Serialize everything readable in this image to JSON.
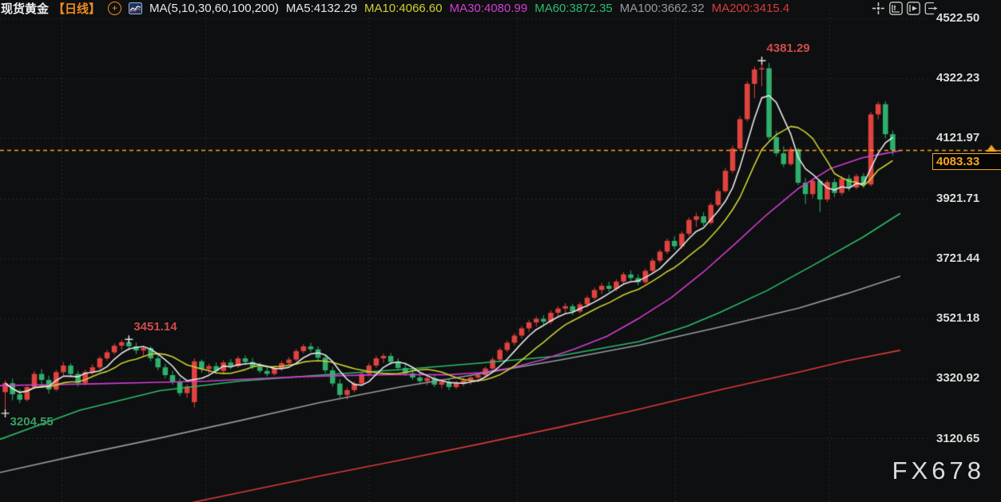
{
  "header": {
    "symbol": "现货黄金",
    "period": "【日线】",
    "add_icon": "plus-circle",
    "indicator_icon": "mini-chart",
    "ma_group_label": "MA(5,10,30,60,100,200)",
    "ma_values": [
      {
        "label": "MA5:4132.29",
        "color": "#e6e8ea"
      },
      {
        "label": "MA10:4066.60",
        "color": "#cdd131"
      },
      {
        "label": "MA30:4080.99",
        "color": "#d23ed2"
      },
      {
        "label": "MA60:3872.35",
        "color": "#2abd6b"
      },
      {
        "label": "MA100:3662.32",
        "color": "#969ca3"
      },
      {
        "label": "MA200:3415.4",
        "color": "#da3b3b"
      }
    ]
  },
  "toolbar": {
    "icons": [
      "crosshair",
      "snap-left-chart",
      "play-forward-chart",
      "pan-right"
    ]
  },
  "y_axis": {
    "ticks": [
      "4522.50",
      "4322.23",
      "4121.97",
      "3921.71",
      "3721.44",
      "3521.18",
      "3320.92",
      "3120.65"
    ]
  },
  "price_badge": {
    "value": "4083.33",
    "color": "#f5a623"
  },
  "watermark": "FX678",
  "chart_data": {
    "type": "candlestick",
    "title": "现货黄金 日线 (Spot Gold, daily)",
    "ylabel": "price",
    "ylim_ticks": [
      4522.5,
      4322.23,
      4121.97,
      3921.71,
      3721.44,
      3521.18,
      3320.92,
      3120.65
    ],
    "grid": {
      "h_values": [
        4522.5,
        4322.23,
        4121.97,
        3921.71,
        3721.44,
        3521.18,
        3320.92,
        3120.65
      ],
      "v_x": [
        77,
        257,
        462,
        647,
        845,
        1038
      ]
    },
    "up_color": "#e0433f",
    "down_color": "#2fb06c",
    "price_line": {
      "value": 4083.33,
      "color": "#f5a623"
    },
    "annotations": [
      {
        "text": "3204.55",
        "color": "#3a9e62",
        "candle": 0,
        "anchor": "low"
      },
      {
        "text": "3451.14",
        "color": "#cf4b4b",
        "candle": 17,
        "anchor": "high"
      },
      {
        "text": "4381.29",
        "color": "#cf4b4b",
        "candle": 104,
        "anchor": "high"
      }
    ],
    "candles": [
      [
        3275,
        3315,
        3204.55,
        3305
      ],
      [
        3305,
        3320,
        3248,
        3268
      ],
      [
        3268,
        3285,
        3238,
        3250
      ],
      [
        3250,
        3300,
        3244,
        3292
      ],
      [
        3292,
        3346,
        3286,
        3336
      ],
      [
        3336,
        3352,
        3300,
        3316
      ],
      [
        3316,
        3330,
        3270,
        3284
      ],
      [
        3284,
        3350,
        3278,
        3342
      ],
      [
        3342,
        3376,
        3330,
        3364
      ],
      [
        3364,
        3372,
        3324,
        3336
      ],
      [
        3336,
        3346,
        3294,
        3306
      ],
      [
        3306,
        3350,
        3298,
        3342
      ],
      [
        3342,
        3368,
        3332,
        3358
      ],
      [
        3358,
        3396,
        3350,
        3388
      ],
      [
        3388,
        3416,
        3380,
        3408
      ],
      [
        3408,
        3438,
        3400,
        3430
      ],
      [
        3430,
        3450,
        3416,
        3442
      ],
      [
        3442,
        3451.14,
        3414,
        3428
      ],
      [
        3428,
        3440,
        3402,
        3414
      ],
      [
        3414,
        3430,
        3394,
        3422
      ],
      [
        3422,
        3428,
        3378,
        3388
      ],
      [
        3388,
        3398,
        3348,
        3358
      ],
      [
        3358,
        3370,
        3322,
        3332
      ],
      [
        3332,
        3346,
        3300,
        3310
      ],
      [
        3310,
        3320,
        3262,
        3272
      ],
      [
        3272,
        3302,
        3256,
        3294
      ],
      [
        3242,
        3388,
        3224,
        3378
      ],
      [
        3378,
        3384,
        3340,
        3352
      ],
      [
        3352,
        3370,
        3336,
        3362
      ],
      [
        3362,
        3374,
        3336,
        3346
      ],
      [
        3346,
        3382,
        3340,
        3374
      ],
      [
        3374,
        3386,
        3352,
        3362
      ],
      [
        3362,
        3396,
        3356,
        3388
      ],
      [
        3388,
        3398,
        3366,
        3376
      ],
      [
        3376,
        3390,
        3352,
        3360
      ],
      [
        3360,
        3374,
        3338,
        3346
      ],
      [
        3346,
        3364,
        3328,
        3336
      ],
      [
        3336,
        3362,
        3330,
        3354
      ],
      [
        3354,
        3380,
        3346,
        3372
      ],
      [
        3372,
        3392,
        3364,
        3384
      ],
      [
        3384,
        3420,
        3378,
        3412
      ],
      [
        3412,
        3436,
        3404,
        3428
      ],
      [
        3428,
        3440,
        3408,
        3418
      ],
      [
        3418,
        3428,
        3380,
        3390
      ],
      [
        3390,
        3400,
        3338,
        3348
      ],
      [
        3348,
        3360,
        3294,
        3304
      ],
      [
        3304,
        3318,
        3256,
        3266
      ],
      [
        3266,
        3290,
        3250,
        3282
      ],
      [
        3282,
        3312,
        3274,
        3304
      ],
      [
        3304,
        3344,
        3296,
        3336
      ],
      [
        3336,
        3372,
        3328,
        3364
      ],
      [
        3364,
        3396,
        3356,
        3388
      ],
      [
        3388,
        3404,
        3372,
        3396
      ],
      [
        3396,
        3406,
        3366,
        3376
      ],
      [
        3376,
        3388,
        3346,
        3356
      ],
      [
        3356,
        3370,
        3330,
        3338
      ],
      [
        3338,
        3354,
        3316,
        3324
      ],
      [
        3324,
        3340,
        3304,
        3312
      ],
      [
        3312,
        3330,
        3298,
        3322
      ],
      [
        3322,
        3332,
        3292,
        3300
      ],
      [
        3300,
        3318,
        3288,
        3310
      ],
      [
        3310,
        3320,
        3282,
        3292
      ],
      [
        3292,
        3314,
        3286,
        3306
      ],
      [
        3306,
        3322,
        3294,
        3314
      ],
      [
        3314,
        3330,
        3300,
        3324
      ],
      [
        3324,
        3340,
        3308,
        3332
      ],
      [
        3332,
        3360,
        3324,
        3354
      ],
      [
        3354,
        3392,
        3346,
        3384
      ],
      [
        3384,
        3424,
        3376,
        3416
      ],
      [
        3416,
        3448,
        3408,
        3440
      ],
      [
        3440,
        3472,
        3430,
        3464
      ],
      [
        3464,
        3496,
        3454,
        3488
      ],
      [
        3488,
        3516,
        3476,
        3508
      ],
      [
        3508,
        3528,
        3494,
        3520
      ],
      [
        3520,
        3532,
        3496,
        3510
      ],
      [
        3510,
        3548,
        3502,
        3540
      ],
      [
        3540,
        3562,
        3528,
        3554
      ],
      [
        3554,
        3572,
        3540,
        3562
      ],
      [
        3562,
        3570,
        3532,
        3544
      ],
      [
        3544,
        3576,
        3538,
        3568
      ],
      [
        3568,
        3598,
        3558,
        3590
      ],
      [
        3590,
        3624,
        3582,
        3616
      ],
      [
        3616,
        3640,
        3602,
        3630
      ],
      [
        3630,
        3644,
        3610,
        3620
      ],
      [
        3620,
        3652,
        3612,
        3644
      ],
      [
        3644,
        3676,
        3636,
        3668
      ],
      [
        3668,
        3682,
        3646,
        3656
      ],
      [
        3656,
        3668,
        3632,
        3642
      ],
      [
        3642,
        3688,
        3636,
        3680
      ],
      [
        3680,
        3722,
        3670,
        3714
      ],
      [
        3714,
        3752,
        3706,
        3744
      ],
      [
        3744,
        3788,
        3736,
        3780
      ],
      [
        3780,
        3796,
        3752,
        3762
      ],
      [
        3762,
        3812,
        3754,
        3804
      ],
      [
        3804,
        3858,
        3796,
        3850
      ],
      [
        3850,
        3874,
        3826,
        3862
      ],
      [
        3862,
        3876,
        3830,
        3840
      ],
      [
        3840,
        3908,
        3834,
        3900
      ],
      [
        3900,
        3954,
        3894,
        3946
      ],
      [
        3946,
        4024,
        3940,
        4014
      ],
      [
        4014,
        4098,
        4006,
        4088
      ],
      [
        4088,
        4196,
        4080,
        4186
      ],
      [
        4186,
        4312,
        4178,
        4304
      ],
      [
        4304,
        4362,
        4256,
        4352
      ],
      [
        4352,
        4381.29,
        4296,
        4356
      ],
      [
        4356,
        4374,
        4118,
        4126
      ],
      [
        4126,
        4148,
        4062,
        4072
      ],
      [
        4072,
        4096,
        4026,
        4036
      ],
      [
        4036,
        4094,
        4030,
        4086
      ],
      [
        4086,
        4090,
        3966,
        3974
      ],
      [
        3974,
        3990,
        3902,
        3936
      ],
      [
        3936,
        3988,
        3922,
        3980
      ],
      [
        3980,
        3986,
        3876,
        3918
      ],
      [
        3918,
        3984,
        3910,
        3976
      ],
      [
        3976,
        3988,
        3926,
        3940
      ],
      [
        3940,
        3996,
        3932,
        3988
      ],
      [
        3988,
        4000,
        3946,
        3958
      ],
      [
        3958,
        4004,
        3952,
        3996
      ],
      [
        3996,
        4006,
        3956,
        3968
      ],
      [
        3968,
        4210,
        3962,
        4202
      ],
      [
        4202,
        4244,
        4186,
        4236
      ],
      [
        4236,
        4246,
        4122,
        4136
      ],
      [
        4136,
        4148,
        4066,
        4083.33
      ]
    ],
    "overlays": [
      {
        "name": "MA200",
        "color": "#da3b3b",
        "anchors": [
          [
            228,
            2900
          ],
          [
            300,
            2940
          ],
          [
            400,
            2995
          ],
          [
            500,
            3048
          ],
          [
            600,
            3102
          ],
          [
            700,
            3158
          ],
          [
            800,
            3218
          ],
          [
            900,
            3282
          ],
          [
            1000,
            3342
          ],
          [
            1060,
            3380
          ],
          [
            1127,
            3415
          ]
        ]
      },
      {
        "name": "MA100",
        "color": "#969ca3",
        "anchors": [
          [
            0,
            3007
          ],
          [
            100,
            3066
          ],
          [
            200,
            3122
          ],
          [
            300,
            3180
          ],
          [
            400,
            3240
          ],
          [
            500,
            3292
          ],
          [
            600,
            3336
          ],
          [
            700,
            3382
          ],
          [
            800,
            3432
          ],
          [
            900,
            3492
          ],
          [
            1000,
            3556
          ],
          [
            1060,
            3604
          ],
          [
            1127,
            3662
          ]
        ]
      },
      {
        "name": "MA60",
        "color": "#2abd6b",
        "anchors": [
          [
            0,
            3118
          ],
          [
            100,
            3215
          ],
          [
            200,
            3280
          ],
          [
            300,
            3312
          ],
          [
            400,
            3332
          ],
          [
            500,
            3350
          ],
          [
            600,
            3372
          ],
          [
            700,
            3396
          ],
          [
            800,
            3444
          ],
          [
            860,
            3495
          ],
          [
            900,
            3540
          ],
          [
            960,
            3614
          ],
          [
            1020,
            3702
          ],
          [
            1080,
            3792
          ],
          [
            1127,
            3872
          ]
        ]
      },
      {
        "name": "MA30",
        "color": "#d23ed2",
        "anchors": [
          [
            0,
            3297
          ],
          [
            60,
            3300
          ],
          [
            120,
            3303
          ],
          [
            200,
            3308
          ],
          [
            260,
            3312
          ],
          [
            320,
            3320
          ],
          [
            380,
            3327
          ],
          [
            440,
            3331
          ],
          [
            500,
            3334
          ],
          [
            560,
            3333
          ],
          [
            600,
            3340
          ],
          [
            640,
            3356
          ],
          [
            680,
            3384
          ],
          [
            720,
            3420
          ],
          [
            760,
            3462
          ],
          [
            800,
            3522
          ],
          [
            840,
            3590
          ],
          [
            880,
            3675
          ],
          [
            920,
            3770
          ],
          [
            960,
            3868
          ],
          [
            1000,
            3956
          ],
          [
            1040,
            4022
          ],
          [
            1080,
            4058
          ],
          [
            1105,
            4070
          ],
          [
            1127,
            4081
          ]
        ]
      },
      {
        "name": "MA10",
        "color": "#cdd131",
        "window": 10
      },
      {
        "name": "MA5",
        "color": "#e6e8ea",
        "window": 5
      }
    ]
  }
}
